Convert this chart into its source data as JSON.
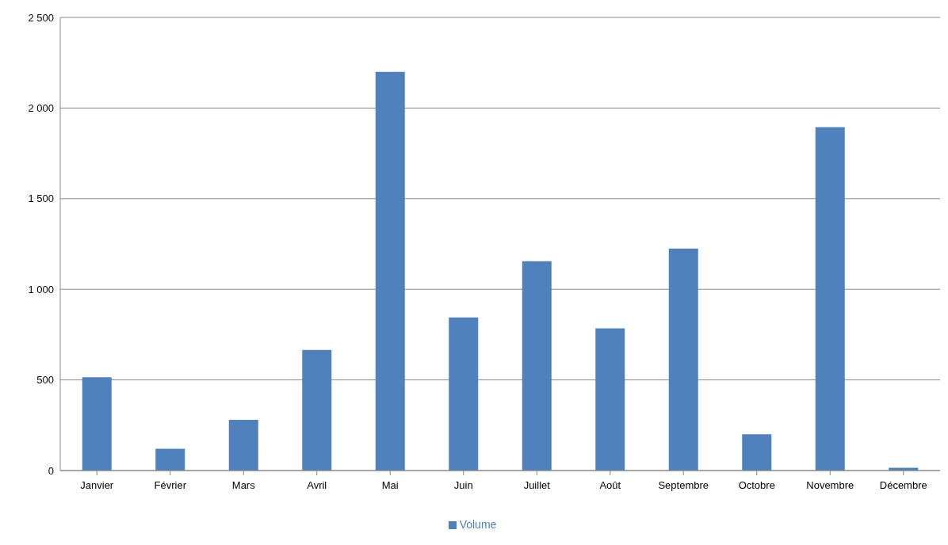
{
  "chart_data": {
    "type": "bar",
    "categories": [
      "Janvier",
      "Février",
      "Mars",
      "Avril",
      "Mai",
      "Juin",
      "Juillet",
      "Août",
      "Septembre",
      "Octobre",
      "Novembre",
      "Décembre"
    ],
    "series": [
      {
        "name": "Volume",
        "color": "#4f81bd",
        "values": [
          515,
          120,
          280,
          665,
          2200,
          845,
          1155,
          785,
          1225,
          200,
          1895,
          15
        ]
      }
    ],
    "ylim": [
      0,
      2500
    ],
    "yticks": [
      0,
      500,
      {
        "value": 1000,
        "label": "1 000"
      },
      {
        "value": 1500,
        "label": "1 500"
      },
      {
        "value": 2000,
        "label": "2 000"
      },
      {
        "value": 2500,
        "label": "2 500"
      }
    ],
    "grid": "y",
    "legend": "bottom"
  }
}
